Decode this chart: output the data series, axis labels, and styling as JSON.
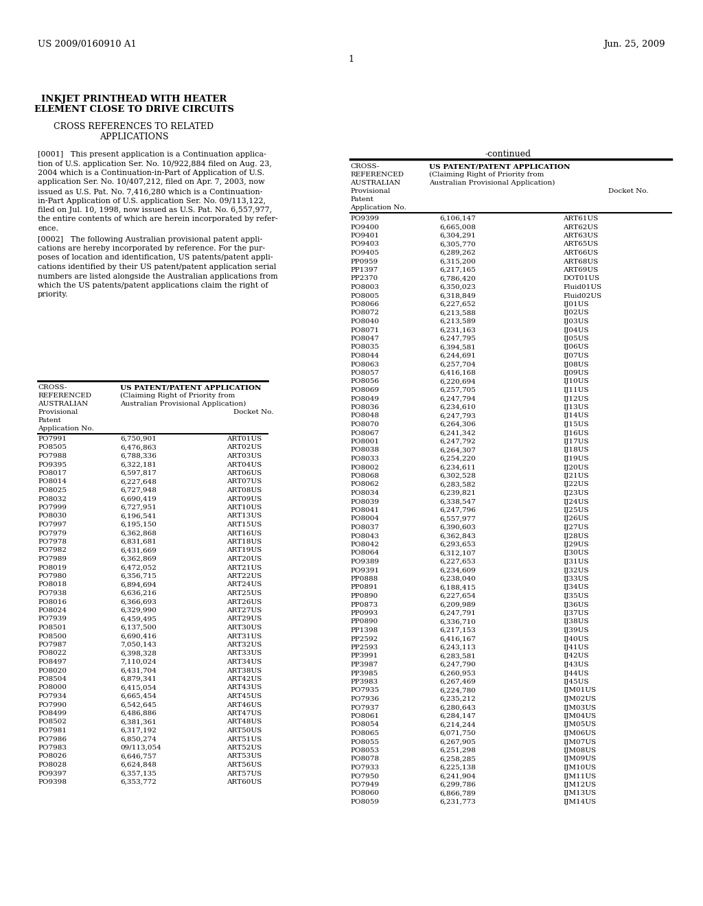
{
  "header_left": "US 2009/0160910 A1",
  "header_right": "Jun. 25, 2009",
  "page_number": "1",
  "title_line1": "INKJET PRINTHEAD WITH HEATER",
  "title_line2": "ELEMENT CLOSE TO DRIVE CIRCUITS",
  "left_table_data": [
    [
      "PO7991",
      "6,750,901",
      "ART01US"
    ],
    [
      "PO8505",
      "6,476,863",
      "ART02US"
    ],
    [
      "PO7988",
      "6,788,336",
      "ART03US"
    ],
    [
      "PO9395",
      "6,322,181",
      "ART04US"
    ],
    [
      "PO8017",
      "6,597,817",
      "ART06US"
    ],
    [
      "PO8014",
      "6,227,648",
      "ART07US"
    ],
    [
      "PO8025",
      "6,727,948",
      "ART08US"
    ],
    [
      "PO8032",
      "6,690,419",
      "ART09US"
    ],
    [
      "PO7999",
      "6,727,951",
      "ART10US"
    ],
    [
      "PO8030",
      "6,196,541",
      "ART13US"
    ],
    [
      "PO7997",
      "6,195,150",
      "ART15US"
    ],
    [
      "PO7979",
      "6,362,868",
      "ART16US"
    ],
    [
      "PO7978",
      "6,831,681",
      "ART18US"
    ],
    [
      "PO7982",
      "6,431,669",
      "ART19US"
    ],
    [
      "PO7989",
      "6,362,869",
      "ART20US"
    ],
    [
      "PO8019",
      "6,472,052",
      "ART21US"
    ],
    [
      "PO7980",
      "6,356,715",
      "ART22US"
    ],
    [
      "PO8018",
      "6,894,694",
      "ART24US"
    ],
    [
      "PO7938",
      "6,636,216",
      "ART25US"
    ],
    [
      "PO8016",
      "6,366,693",
      "ART26US"
    ],
    [
      "PO8024",
      "6,329,990",
      "ART27US"
    ],
    [
      "PO7939",
      "6,459,495",
      "ART29US"
    ],
    [
      "PO8501",
      "6,137,500",
      "ART30US"
    ],
    [
      "PO8500",
      "6,690,416",
      "ART31US"
    ],
    [
      "PO7987",
      "7,050,143",
      "ART32US"
    ],
    [
      "PO8022",
      "6,398,328",
      "ART33US"
    ],
    [
      "PO8497",
      "7,110,024",
      "ART34US"
    ],
    [
      "PO8020",
      "6,431,704",
      "ART38US"
    ],
    [
      "PO8504",
      "6,879,341",
      "ART42US"
    ],
    [
      "PO8000",
      "6,415,054",
      "ART43US"
    ],
    [
      "PO7934",
      "6,665,454",
      "ART45US"
    ],
    [
      "PO7990",
      "6,542,645",
      "ART46US"
    ],
    [
      "PO8499",
      "6,486,886",
      "ART47US"
    ],
    [
      "PO8502",
      "6,381,361",
      "ART48US"
    ],
    [
      "PO7981",
      "6,317,192",
      "ART50US"
    ],
    [
      "PO7986",
      "6,850,274",
      "ART51US"
    ],
    [
      "PO7983",
      "09/113,054",
      "ART52US"
    ],
    [
      "PO8026",
      "6,646,757",
      "ART53US"
    ],
    [
      "PO8028",
      "6,624,848",
      "ART56US"
    ],
    [
      "PO9397",
      "6,357,135",
      "ART57US"
    ],
    [
      "PO9398",
      "6,353,772",
      "ART60US"
    ]
  ],
  "right_table_data": [
    [
      "PO9399",
      "6,106,147",
      "ART61US"
    ],
    [
      "PO9400",
      "6,665,008",
      "ART62US"
    ],
    [
      "PO9401",
      "6,304,291",
      "ART63US"
    ],
    [
      "PO9403",
      "6,305,770",
      "ART65US"
    ],
    [
      "PO9405",
      "6,289,262",
      "ART66US"
    ],
    [
      "PP0959",
      "6,315,200",
      "ART68US"
    ],
    [
      "PP1397",
      "6,217,165",
      "ART69US"
    ],
    [
      "PP2370",
      "6,786,420",
      "DOT01US"
    ],
    [
      "PO8003",
      "6,350,023",
      "Fluid01US"
    ],
    [
      "PO8005",
      "6,318,849",
      "Fluid02US"
    ],
    [
      "PO8066",
      "6,227,652",
      "IJ01US"
    ],
    [
      "PO8072",
      "6,213,588",
      "IJ02US"
    ],
    [
      "PO8040",
      "6,213,589",
      "IJ03US"
    ],
    [
      "PO8071",
      "6,231,163",
      "IJ04US"
    ],
    [
      "PO8047",
      "6,247,795",
      "IJ05US"
    ],
    [
      "PO8035",
      "6,394,581",
      "IJ06US"
    ],
    [
      "PO8044",
      "6,244,691",
      "IJ07US"
    ],
    [
      "PO8063",
      "6,257,704",
      "IJ08US"
    ],
    [
      "PO8057",
      "6,416,168",
      "IJ09US"
    ],
    [
      "PO8056",
      "6,220,694",
      "IJ10US"
    ],
    [
      "PO8069",
      "6,257,705",
      "IJ11US"
    ],
    [
      "PO8049",
      "6,247,794",
      "IJ12US"
    ],
    [
      "PO8036",
      "6,234,610",
      "IJ13US"
    ],
    [
      "PO8048",
      "6,247,793",
      "IJ14US"
    ],
    [
      "PO8070",
      "6,264,306",
      "IJ15US"
    ],
    [
      "PO8067",
      "6,241,342",
      "IJ16US"
    ],
    [
      "PO8001",
      "6,247,792",
      "IJ17US"
    ],
    [
      "PO8038",
      "6,264,307",
      "IJ18US"
    ],
    [
      "PO8033",
      "6,254,220",
      "IJ19US"
    ],
    [
      "PO8002",
      "6,234,611",
      "IJ20US"
    ],
    [
      "PO8068",
      "6,302,528",
      "IJ21US"
    ],
    [
      "PO8062",
      "6,283,582",
      "IJ22US"
    ],
    [
      "PO8034",
      "6,239,821",
      "IJ23US"
    ],
    [
      "PO8039",
      "6,338,547",
      "IJ24US"
    ],
    [
      "PO8041",
      "6,247,796",
      "IJ25US"
    ],
    [
      "PO8004",
      "6,557,977",
      "IJ26US"
    ],
    [
      "PO8037",
      "6,390,603",
      "IJ27US"
    ],
    [
      "PO8043",
      "6,362,843",
      "IJ28US"
    ],
    [
      "PO8042",
      "6,293,653",
      "IJ29US"
    ],
    [
      "PO8064",
      "6,312,107",
      "IJ30US"
    ],
    [
      "PO9389",
      "6,227,653",
      "IJ31US"
    ],
    [
      "PO9391",
      "6,234,609",
      "IJ32US"
    ],
    [
      "PP0888",
      "6,238,040",
      "IJ33US"
    ],
    [
      "PP0891",
      "6,188,415",
      "IJ34US"
    ],
    [
      "PP0890",
      "6,227,654",
      "IJ35US"
    ],
    [
      "PP0873",
      "6,209,989",
      "IJ36US"
    ],
    [
      "PP0993",
      "6,247,791",
      "IJ37US"
    ],
    [
      "PP0890",
      "6,336,710",
      "IJ38US"
    ],
    [
      "PP1398",
      "6,217,153",
      "IJ39US"
    ],
    [
      "PP2592",
      "6,416,167",
      "IJ40US"
    ],
    [
      "PP2593",
      "6,243,113",
      "IJ41US"
    ],
    [
      "PP3991",
      "6,283,581",
      "IJ42US"
    ],
    [
      "PP3987",
      "6,247,790",
      "IJ43US"
    ],
    [
      "PP3985",
      "6,260,953",
      "IJ44US"
    ],
    [
      "PP3983",
      "6,267,469",
      "IJ45US"
    ],
    [
      "PO7935",
      "6,224,780",
      "IJM01US"
    ],
    [
      "PO7936",
      "6,235,212",
      "IJM02US"
    ],
    [
      "PO7937",
      "6,280,643",
      "IJM03US"
    ],
    [
      "PO8061",
      "6,284,147",
      "IJM04US"
    ],
    [
      "PO8054",
      "6,214,244",
      "IJM05US"
    ],
    [
      "PO8065",
      "6,071,750",
      "IJM06US"
    ],
    [
      "PO8055",
      "6,267,905",
      "IJM07US"
    ],
    [
      "PO8053",
      "6,251,298",
      "IJM08US"
    ],
    [
      "PO8078",
      "6,258,285",
      "IJM09US"
    ],
    [
      "PO7933",
      "6,225,138",
      "IJM10US"
    ],
    [
      "PO7950",
      "6,241,904",
      "IJM11US"
    ],
    [
      "PO7949",
      "6,299,786",
      "IJM12US"
    ],
    [
      "PO8060",
      "6,866,789",
      "IJM13US"
    ],
    [
      "PO8059",
      "6,231,773",
      "IJM14US"
    ]
  ],
  "background_color": "#ffffff"
}
